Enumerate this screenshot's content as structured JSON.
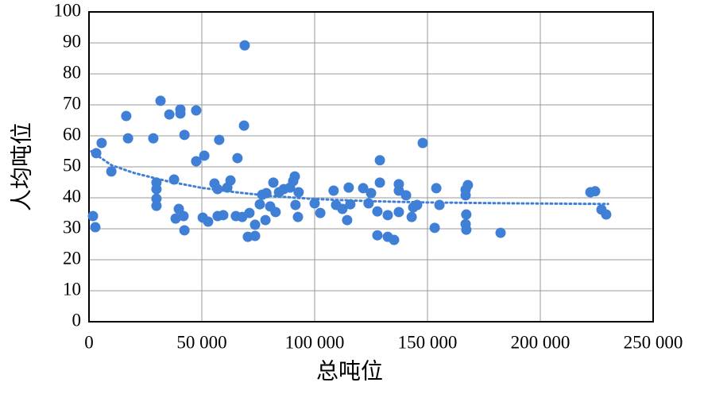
{
  "chart_data": {
    "type": "scatter",
    "xlabel": "总吨位",
    "ylabel": "人均吨位",
    "color": "#3f7fd6",
    "grid": true,
    "xlim": [
      0,
      250000
    ],
    "ylim": [
      0,
      100
    ],
    "xticks": [
      0,
      {
        "value": 50000,
        "label": "50 000"
      },
      {
        "value": 100000,
        "label": "100 000"
      },
      {
        "value": 150000,
        "label": "150 000"
      },
      {
        "value": 200000,
        "label": "200 000"
      },
      {
        "value": 250000,
        "label": "250 000"
      }
    ],
    "yticks": [
      0,
      10,
      20,
      30,
      40,
      50,
      60,
      70,
      80,
      90,
      100
    ],
    "x": [
      1760,
      2800,
      3200,
      5600,
      9900,
      16500,
      17300,
      28500,
      29900,
      29900,
      29900,
      29900,
      31700,
      35600,
      37700,
      38400,
      39800,
      40500,
      40500,
      41900,
      42300,
      42300,
      47500,
      47500,
      51100,
      50400,
      52800,
      55600,
      57000,
      57700,
      57000,
      59500,
      61300,
      62700,
      65100,
      65800,
      68700,
      69000,
      67900,
      70400,
      71100,
      73600,
      73600,
      75700,
      76800,
      78600,
      78200,
      80300,
      81700,
      82700,
      84200,
      86300,
      89100,
      90500,
      91200,
      91500,
      92600,
      92900,
      100000,
      102500,
      108400,
      109500,
      112300,
      114400,
      115100,
      115800,
      121500,
      123900,
      125000,
      127800,
      127800,
      128900,
      128900,
      132400,
      132400,
      135200,
      137300,
      137300,
      137300,
      140500,
      143000,
      143700,
      145400,
      147900,
      153900,
      153200,
      155300,
      166900,
      166900,
      167200,
      166900,
      167200,
      167900,
      182400,
      222200,
      224300,
      227100,
      229200
    ],
    "values": [
      34.1,
      30.5,
      54.4,
      57.7,
      48.5,
      66.4,
      59.2,
      59.2,
      44.9,
      42.8,
      39.7,
      37.4,
      71.3,
      66.9,
      45.9,
      33.3,
      36.4,
      68.5,
      67.2,
      34.1,
      29.5,
      60.3,
      68.2,
      51.8,
      53.6,
      33.6,
      32.3,
      44.6,
      42.8,
      58.7,
      34.1,
      34.4,
      43.3,
      45.6,
      34.1,
      52.8,
      63.3,
      89.2,
      33.8,
      27.4,
      35.1,
      27.7,
      31.3,
      37.9,
      41.0,
      41.5,
      32.8,
      37.2,
      44.9,
      35.4,
      41.8,
      42.8,
      43.3,
      45.4,
      46.9,
      37.7,
      33.8,
      41.8,
      38.2,
      35.1,
      42.3,
      37.7,
      36.4,
      32.8,
      43.3,
      37.9,
      43.1,
      38.2,
      41.5,
      35.6,
      27.9,
      52.1,
      44.9,
      34.4,
      27.4,
      26.4,
      44.4,
      42.3,
      35.4,
      40.8,
      33.8,
      36.9,
      37.7,
      57.7,
      43.1,
      30.3,
      37.7,
      42.6,
      40.8,
      34.6,
      31.5,
      29.7,
      44.1,
      28.7,
      41.8,
      42.1,
      36.2,
      34.6
    ],
    "trendline": {
      "x": [
        1000,
        10000,
        20000,
        35000,
        50000,
        65000,
        80000,
        100000,
        125000,
        150000,
        190000,
        230000
      ],
      "values": [
        55,
        50.5,
        48,
        45.3,
        43.2,
        41.8,
        40.6,
        39.6,
        38.9,
        38.5,
        38.2,
        38
      ]
    }
  }
}
